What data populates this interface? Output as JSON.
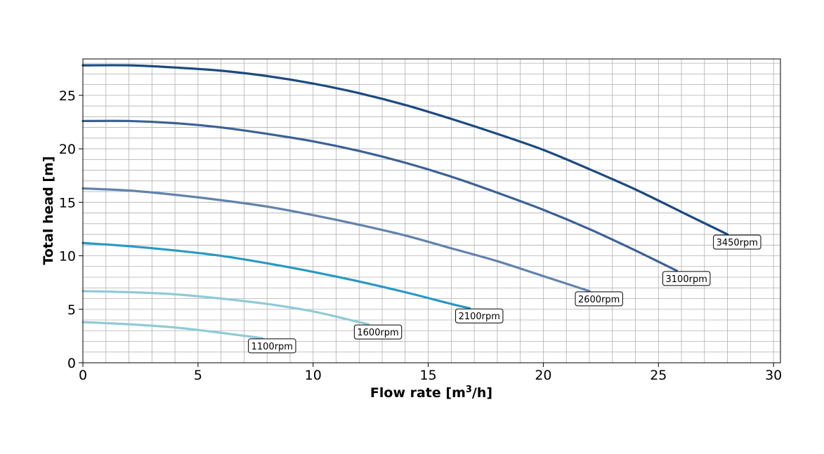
{
  "chart_data": {
    "type": "line",
    "title": "",
    "xlabel": "Flow rate [m³/h]",
    "xlabel_parts": {
      "main": "Flow rate [m",
      "sup": "3",
      "tail": "/h]"
    },
    "ylabel": "Total head [m]",
    "xlim": [
      0,
      30.3
    ],
    "ylim": [
      0,
      28.4
    ],
    "x_ticks": [
      0,
      5,
      10,
      15,
      20,
      25,
      30
    ],
    "y_ticks": [
      0,
      5,
      10,
      15,
      20,
      25
    ],
    "x_minor_step": 1,
    "y_minor_step": 1,
    "grid": true,
    "legend": "none",
    "series": [
      {
        "name": "3450rpm",
        "color": "#1b4a80",
        "x": [
          0,
          2,
          4,
          6,
          8,
          10,
          12,
          14,
          16,
          18,
          20,
          22,
          24,
          26,
          28
        ],
        "y": [
          27.8,
          27.8,
          27.6,
          27.3,
          26.8,
          26.1,
          25.2,
          24.1,
          22.8,
          21.4,
          19.9,
          18.1,
          16.2,
          14.1,
          12.0
        ]
      },
      {
        "name": "3100rpm",
        "color": "#3c6196",
        "x": [
          0,
          2,
          4,
          6,
          8,
          10,
          12,
          14,
          16,
          18,
          20,
          22,
          24,
          25.8
        ],
        "y": [
          22.6,
          22.6,
          22.4,
          22.0,
          21.4,
          20.7,
          19.8,
          18.7,
          17.4,
          15.9,
          14.3,
          12.5,
          10.5,
          8.6
        ]
      },
      {
        "name": "2600rpm",
        "color": "#6283ad",
        "x": [
          0,
          2,
          4,
          6,
          8,
          10,
          12,
          14,
          16,
          18,
          20,
          22
        ],
        "y": [
          16.3,
          16.1,
          15.7,
          15.2,
          14.6,
          13.8,
          12.9,
          11.9,
          10.7,
          9.5,
          8.1,
          6.7
        ]
      },
      {
        "name": "2100rpm",
        "color": "#2998c4",
        "x": [
          0,
          2,
          4,
          6,
          8,
          10,
          12,
          14,
          16,
          16.8
        ],
        "y": [
          11.2,
          10.9,
          10.5,
          10.0,
          9.3,
          8.5,
          7.6,
          6.6,
          5.5,
          5.1
        ]
      },
      {
        "name": "1600rpm",
        "color": "#8fcbd6",
        "x": [
          0,
          2,
          4,
          6,
          8,
          10,
          12,
          12.4
        ],
        "y": [
          6.7,
          6.6,
          6.4,
          6.0,
          5.5,
          4.8,
          3.8,
          3.6
        ]
      },
      {
        "name": "1100rpm",
        "color": "#8fcbd6",
        "x": [
          0,
          2,
          4,
          6,
          7.8
        ],
        "y": [
          3.8,
          3.6,
          3.3,
          2.8,
          2.3
        ]
      }
    ]
  }
}
